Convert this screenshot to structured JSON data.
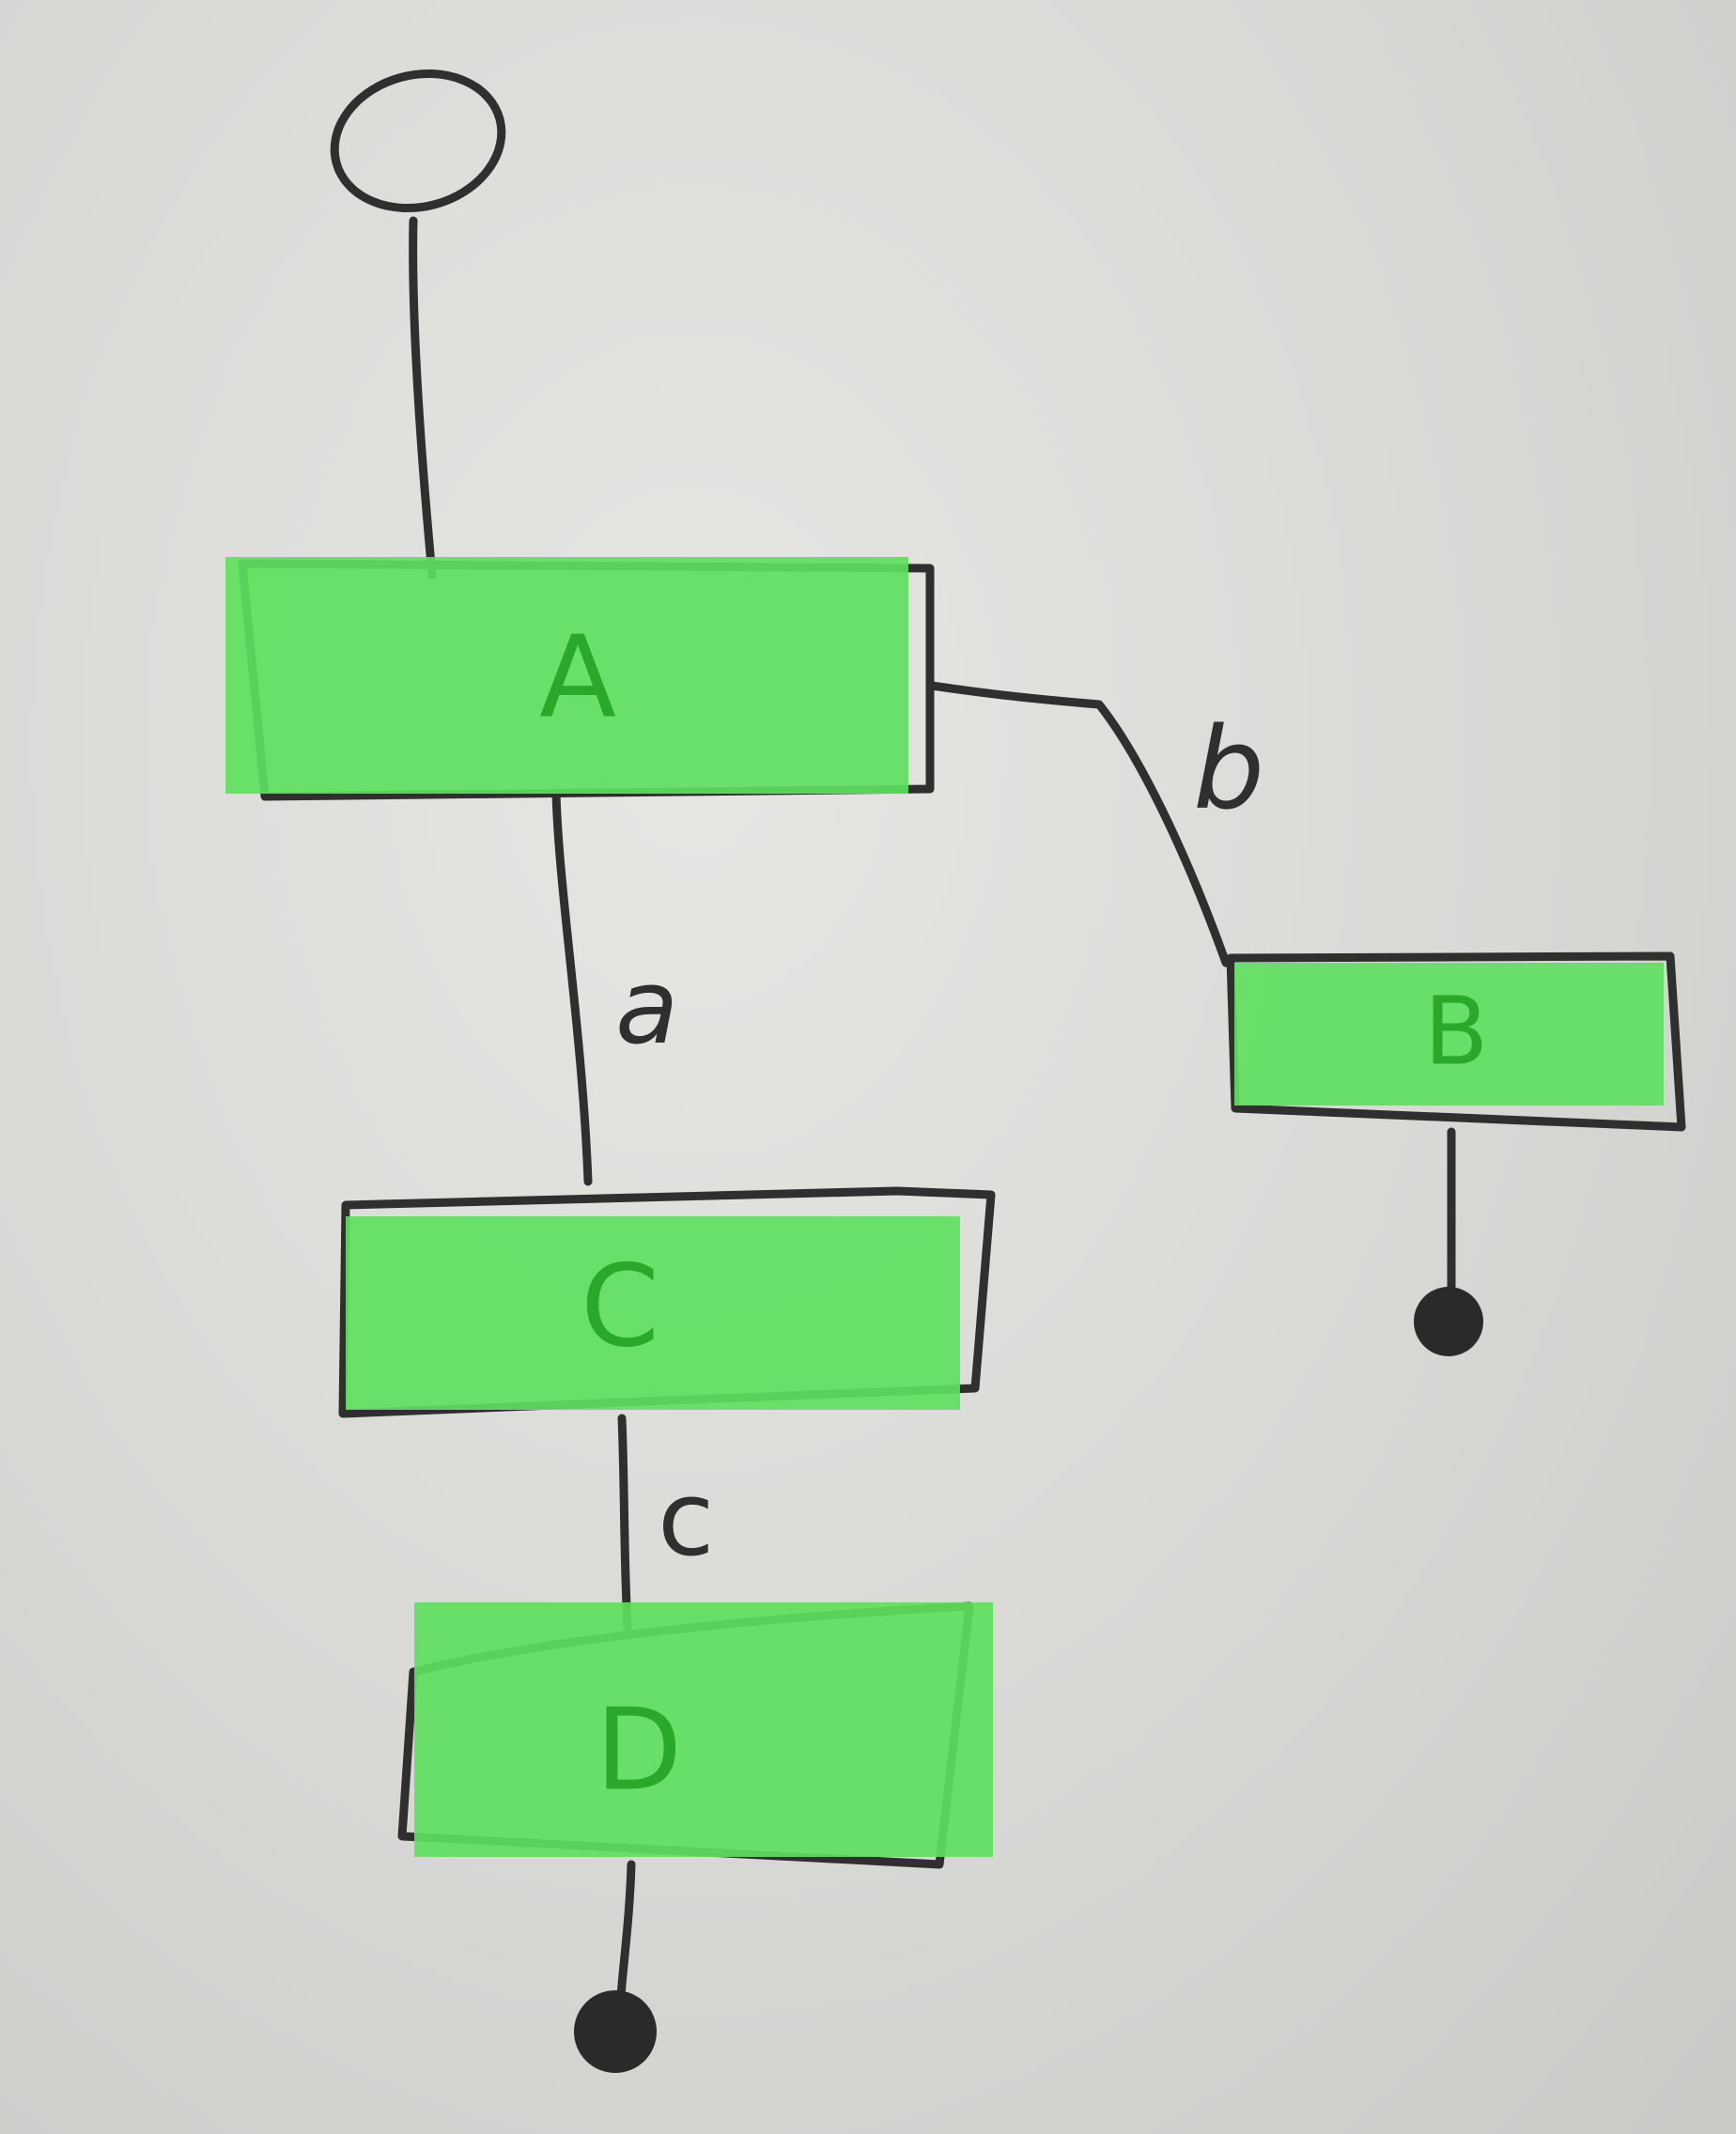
{
  "diagram": {
    "nodes": [
      {
        "id": "A",
        "label": "A"
      },
      {
        "id": "B",
        "label": "B"
      },
      {
        "id": "C",
        "label": "C"
      },
      {
        "id": "D",
        "label": "D"
      }
    ],
    "edges": [
      {
        "from": "start",
        "to": "A",
        "label": ""
      },
      {
        "from": "A",
        "to": "C",
        "label": "a"
      },
      {
        "from": "A",
        "to": "B",
        "label": "b"
      },
      {
        "from": "C",
        "to": "D",
        "label": "c"
      },
      {
        "from": "B",
        "to": "end-B",
        "label": ""
      },
      {
        "from": "D",
        "to": "end-D",
        "label": ""
      }
    ],
    "highlight_color": "#5ee05e",
    "ink_color": "#2f2f2f"
  }
}
